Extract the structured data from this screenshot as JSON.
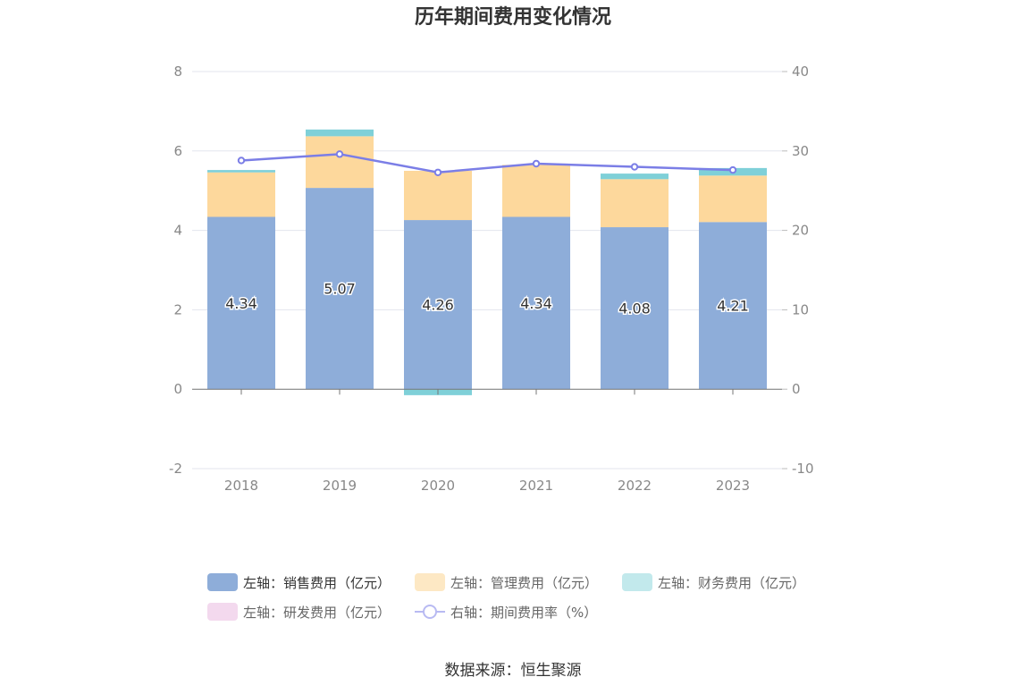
{
  "chart_data": {
    "type": "bar",
    "title": "历年期间费用变化情况",
    "categories": [
      "2018",
      "2019",
      "2020",
      "2021",
      "2022",
      "2023"
    ],
    "series": [
      {
        "name": "左轴：销售费用（亿元）",
        "type": "bar",
        "axis": "left",
        "stack": true,
        "color": "#8eadd9",
        "values": [
          4.34,
          5.07,
          4.26,
          4.34,
          4.08,
          4.21
        ]
      },
      {
        "name": "左轴：管理费用（亿元）",
        "type": "bar",
        "axis": "left",
        "stack": true,
        "color": "#fdd89c",
        "values": [
          1.12,
          1.3,
          1.24,
          1.31,
          1.21,
          1.17
        ]
      },
      {
        "name": "左轴：财务费用（亿元）",
        "type": "bar",
        "axis": "left",
        "stack": true,
        "color": "#7fd0d8",
        "values": [
          0.06,
          0.17,
          -0.15,
          0.0,
          0.14,
          0.19
        ]
      },
      {
        "name": "左轴：研发费用（亿元）",
        "type": "bar",
        "axis": "left",
        "stack": true,
        "color": "#f0d0e8",
        "values": [
          0,
          0,
          0,
          0,
          0,
          0
        ]
      },
      {
        "name": "右轴：期间费用率（%）",
        "type": "line",
        "axis": "right",
        "color": "#7b7ee6",
        "values": [
          28.8,
          29.6,
          27.3,
          28.4,
          28.0,
          27.6
        ]
      }
    ],
    "data_labels": [
      "4.34",
      "5.07",
      "4.26",
      "4.34",
      "4.08",
      "4.21"
    ],
    "y_left": {
      "min": -2,
      "max": 8,
      "ticks": [
        "-2",
        "0",
        "2",
        "4",
        "6",
        "8"
      ]
    },
    "y_right": {
      "min": -10,
      "max": 40,
      "ticks": [
        "-10",
        "0",
        "10",
        "20",
        "30",
        "40"
      ]
    },
    "grid": true,
    "legend_position": "bottom"
  },
  "source": "数据来源：恒生聚源"
}
